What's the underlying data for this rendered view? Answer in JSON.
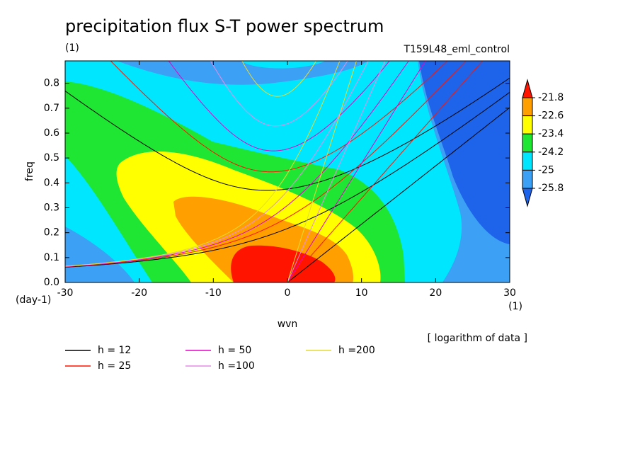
{
  "chart_data": {
    "type": "contour",
    "title": "precipitation flux S-T power spectrum",
    "subtitle": "(1)",
    "run_label": "T159L48_eml_control",
    "note": "[ logarithm of data ]",
    "xlabel": "wvn",
    "ylabel": "freq",
    "x_unit": "(1)",
    "y_unit": "(day-1)",
    "xlim": [
      -30,
      30
    ],
    "xticks": [
      -30,
      -20,
      -10,
      0,
      10,
      20,
      30
    ],
    "ylim": [
      0,
      0.89
    ],
    "yticks": [
      {
        "value": 0,
        "label": "0.0"
      },
      0.1,
      0.2,
      0.3,
      0.4,
      0.5,
      0.6,
      0.7,
      0.8
    ],
    "levels": [
      -21.8,
      -22.6,
      -23.4,
      -24.2,
      -25,
      -25.8
    ],
    "colors": [
      "#1e64eb",
      "#3ca0f5",
      "#00e6ff",
      "#1ee632",
      "#ffff00",
      "#ffa000",
      "#ff1400"
    ],
    "series": [
      {
        "name": "h = 12",
        "h": 12,
        "color": "#000000"
      },
      {
        "name": "h = 25",
        "h": 25,
        "color": "#ff1400"
      },
      {
        "name": "h = 50",
        "h": 50,
        "color": "#e600c8"
      },
      {
        "name": "h =100",
        "h": 100,
        "color": "#e68ce6"
      },
      {
        "name": "h =200",
        "h": 200,
        "color": "#e6dc32"
      }
    ]
  }
}
